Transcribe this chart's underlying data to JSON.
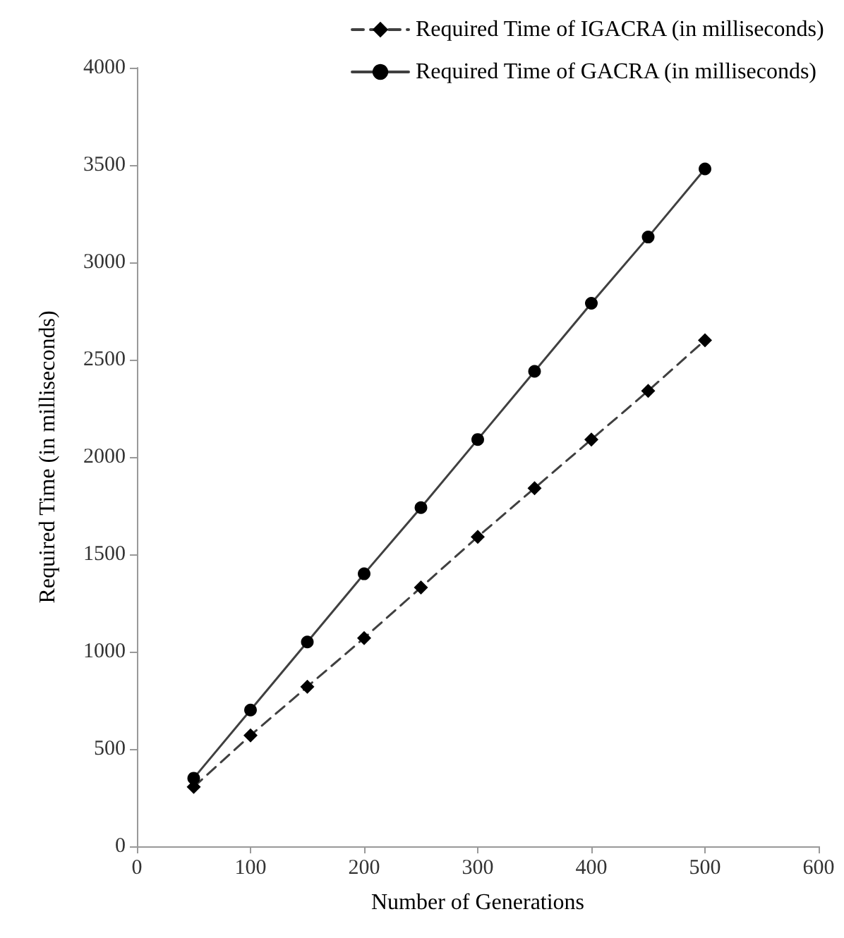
{
  "chart_data": {
    "type": "line",
    "xlabel": "Number of Generations",
    "ylabel": "Required Time (in milliseconds)",
    "x": [
      50,
      100,
      150,
      200,
      250,
      300,
      350,
      400,
      450,
      500
    ],
    "series": [
      {
        "name": "Required Time of IGACRA (in milliseconds)",
        "color": "#404040",
        "marker": "diamond",
        "line_style": "dashed",
        "values": [
          305,
          570,
          820,
          1070,
          1330,
          1590,
          1840,
          2090,
          2340,
          2600
        ]
      },
      {
        "name": "Required Time of GACRA (in milliseconds)",
        "color": "#404040",
        "marker": "circle",
        "line_style": "solid",
        "values": [
          350,
          700,
          1050,
          1400,
          1740,
          2090,
          2440,
          2790,
          3130,
          3480
        ]
      }
    ],
    "xlim": [
      0,
      600
    ],
    "xticks": [
      0,
      100,
      200,
      300,
      400,
      500,
      600
    ],
    "ylim": [
      0,
      4000
    ],
    "yticks": [
      0,
      500,
      1000,
      1500,
      2000,
      2500,
      3000,
      3500,
      4000
    ],
    "grid": false,
    "legend": "top right"
  }
}
